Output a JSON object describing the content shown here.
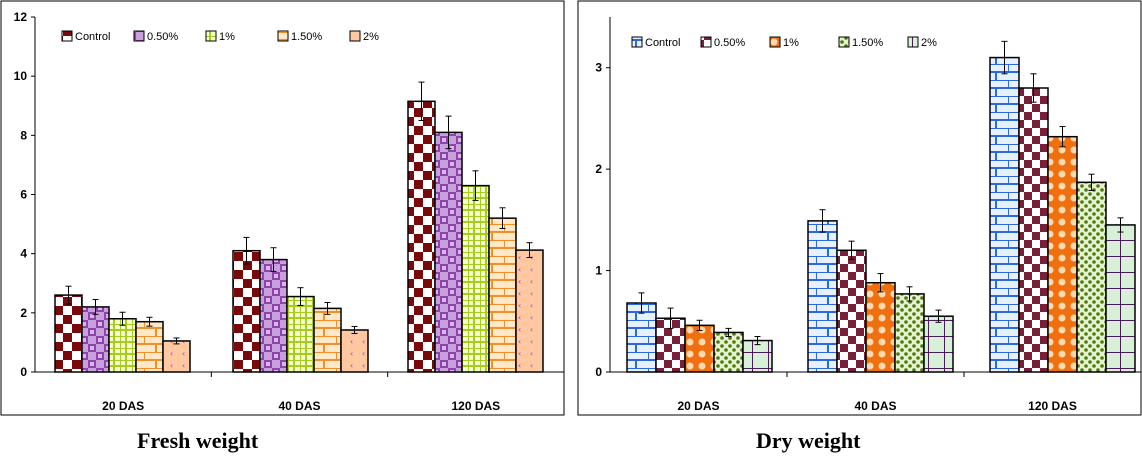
{
  "chart_data": [
    {
      "type": "bar",
      "title": "",
      "caption": "Fresh weight",
      "xlabel": "",
      "ylabel": "",
      "categories": [
        "20 DAS",
        "40 DAS",
        "120 DAS"
      ],
      "ylim": [
        0,
        12
      ],
      "yticks": [
        0,
        2,
        4,
        6,
        8,
        10,
        12
      ],
      "grid": false,
      "legend_position": "top-left",
      "series": [
        {
          "name": "Control",
          "values": [
            2.6,
            4.1,
            9.15
          ],
          "errors": [
            0.3,
            0.45,
            0.65
          ],
          "color": "#7a0a0a",
          "pattern": "checker"
        },
        {
          "name": "0.50%",
          "values": [
            2.2,
            3.8,
            8.1
          ],
          "errors": [
            0.25,
            0.4,
            0.55
          ],
          "color": "#9b59b6",
          "pattern": "checker"
        },
        {
          "name": "1%",
          "values": [
            1.8,
            2.55,
            6.3
          ],
          "errors": [
            0.22,
            0.3,
            0.5
          ],
          "color": "#b8d82a",
          "pattern": "grid"
        },
        {
          "name": "1.50%",
          "values": [
            1.7,
            2.15,
            5.2
          ],
          "errors": [
            0.15,
            0.2,
            0.35
          ],
          "color": "#f0a040",
          "pattern": "brick"
        },
        {
          "name": "2%",
          "values": [
            1.05,
            1.42,
            4.12
          ],
          "errors": [
            0.1,
            0.12,
            0.25
          ],
          "color": "#9b59b6",
          "pattern": "dots"
        }
      ]
    },
    {
      "type": "bar",
      "title": "",
      "caption": "Dry weight",
      "xlabel": "",
      "ylabel": "",
      "categories": [
        "20 DAS",
        "40 DAS",
        "120 DAS"
      ],
      "ylim": [
        0,
        3.5
      ],
      "yticks": [
        0,
        1,
        2,
        3
      ],
      "grid": false,
      "legend_position": "top-left",
      "series": [
        {
          "name": "Control",
          "values": [
            0.68,
            1.49,
            3.1
          ],
          "errors": [
            0.1,
            0.11,
            0.16
          ],
          "color": "#2a6ae0",
          "pattern": "brick"
        },
        {
          "name": "0.50%",
          "values": [
            0.53,
            1.2,
            2.8
          ],
          "errors": [
            0.1,
            0.09,
            0.14
          ],
          "color": "#7a1f3a",
          "pattern": "checker"
        },
        {
          "name": "1%",
          "values": [
            0.46,
            0.88,
            2.32
          ],
          "errors": [
            0.05,
            0.09,
            0.1
          ],
          "color": "#f07010",
          "pattern": "circles"
        },
        {
          "name": "1.50%",
          "values": [
            0.39,
            0.77,
            1.87
          ],
          "errors": [
            0.04,
            0.07,
            0.08
          ],
          "color": "#5a8a1a",
          "pattern": "dots"
        },
        {
          "name": "2%",
          "values": [
            0.31,
            0.55,
            1.45
          ],
          "errors": [
            0.04,
            0.06,
            0.07
          ],
          "color": "#4a1a5a",
          "pattern": "bigGrid"
        }
      ]
    }
  ]
}
